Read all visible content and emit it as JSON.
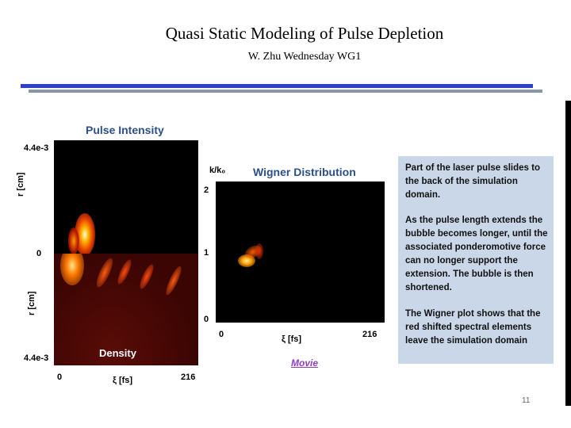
{
  "header": {
    "title": "Quasi Static Modeling of Pulse Depletion",
    "subtitle": "W. Zhu Wednesday WG1"
  },
  "left_plot": {
    "title": "Pulse Intensity",
    "top_value": "4.4e-3",
    "mid_value": "0",
    "bottom_value": "4.4e-3",
    "y_label_top": "r [cm]",
    "y_label_bottom": "r [cm]",
    "density_label": "Density",
    "x_min": "0",
    "x_label": "ξ [fs]",
    "x_max": "216"
  },
  "wigner_plot": {
    "title": "Wigner Distribution",
    "y_label": "k/k₀",
    "y_ticks": [
      "2",
      "1",
      "0"
    ],
    "x_min": "0",
    "x_label": "ξ [fs]",
    "x_max": "216",
    "movie_link": "Movie"
  },
  "note": {
    "para1": "Part of the laser pulse slides to the back of the simulation domain.",
    "para2": "As the pulse length extends the bubble becomes longer, until the associated ponderomotive force can no longer support the extension. The bubble is then shortened.",
    "para3": "The Wigner plot shows that the red shifted spectral elements leave the simulation domain"
  },
  "page_number": "11",
  "colors": {
    "accent_blue": "#2b3fd1",
    "rule_grey": "#8a96a8",
    "plot_title": "#2c4f8a",
    "note_bg": "#c9d7e8",
    "link": "#8e3fbf"
  }
}
